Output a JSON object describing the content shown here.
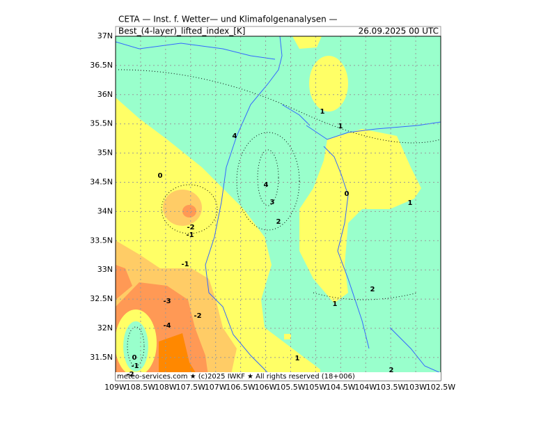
{
  "header": {
    "title": "CETA — Inst. f. Wetter— und Klimafolgenanalysen —",
    "field": "Best_(4-layer)_lifted_index_[K]",
    "date": "26.09.2025 00 UTC"
  },
  "axes": {
    "lat": [
      "37N",
      "36.5N",
      "36N",
      "35.5N",
      "35N",
      "34.5N",
      "34N",
      "33.5N",
      "33N",
      "32.5N",
      "32N",
      "31.5N"
    ],
    "lon": [
      "109W",
      "108.5W",
      "108W",
      "107.5W",
      "107W",
      "106.5W",
      "106W",
      "105.5W",
      "105W",
      "104.5W",
      "104W",
      "103.5W",
      "103W",
      "102.5W"
    ]
  },
  "contour_labels": [
    "1",
    "1",
    "4",
    "4",
    "3",
    "2",
    "0",
    "0",
    "1",
    "-2",
    "-1",
    "-1",
    "2",
    "1",
    "-3",
    "-2",
    "-4",
    "0",
    "-1",
    "-2",
    "1",
    "2"
  ],
  "footer": "meteo-services.com ★ (c)2025 IWKF ★ All rights reserved (18+006)"
}
